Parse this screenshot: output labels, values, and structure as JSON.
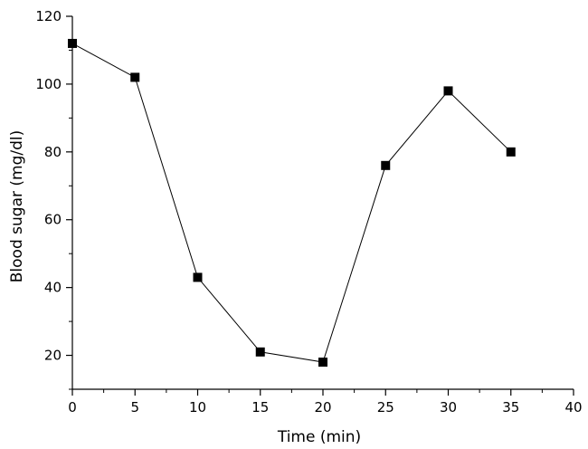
{
  "chart_data": {
    "type": "line",
    "title": "",
    "xlabel": "Time (min)",
    "ylabel": "Blood sugar (mg/dl)",
    "xlim": [
      0,
      40
    ],
    "ylim": [
      10,
      120
    ],
    "xticks": [
      0,
      5,
      10,
      15,
      20,
      25,
      30,
      35,
      40
    ],
    "yticks": [
      20,
      40,
      60,
      80,
      100,
      120
    ],
    "grid": false,
    "series": [
      {
        "name": "Blood sugar",
        "marker": "square",
        "color": "#000000",
        "x": [
          0,
          5,
          10,
          15,
          20,
          25,
          30,
          35
        ],
        "y": [
          112,
          102,
          43,
          21,
          18,
          76,
          98,
          80
        ]
      }
    ]
  }
}
